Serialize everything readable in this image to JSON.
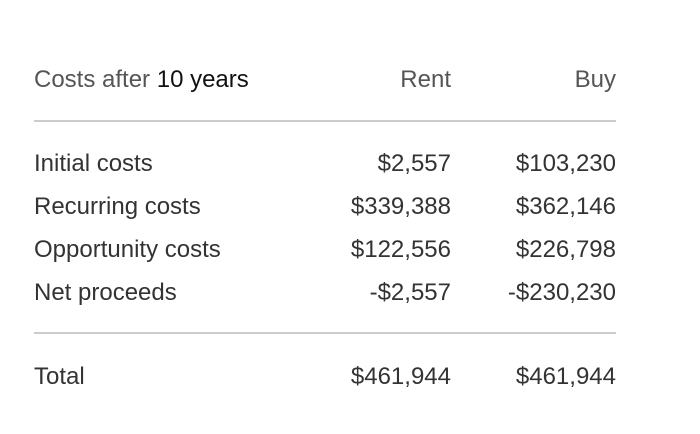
{
  "header": {
    "label_prefix": "Costs after",
    "years": "10 years",
    "col_rent": "Rent",
    "col_buy": "Buy"
  },
  "rows": [
    {
      "label": "Initial costs",
      "rent": "$2,557",
      "buy": "$103,230"
    },
    {
      "label": "Recurring costs",
      "rent": "$339,388",
      "buy": "$362,146"
    },
    {
      "label": "Opportunity costs",
      "rent": "$122,556",
      "buy": "$226,798"
    },
    {
      "label": "Net proceeds",
      "rent": "-$2,557",
      "buy": "-$230,230"
    }
  ],
  "total": {
    "label": "Total",
    "rent": "$461,944",
    "buy": "$461,944"
  }
}
